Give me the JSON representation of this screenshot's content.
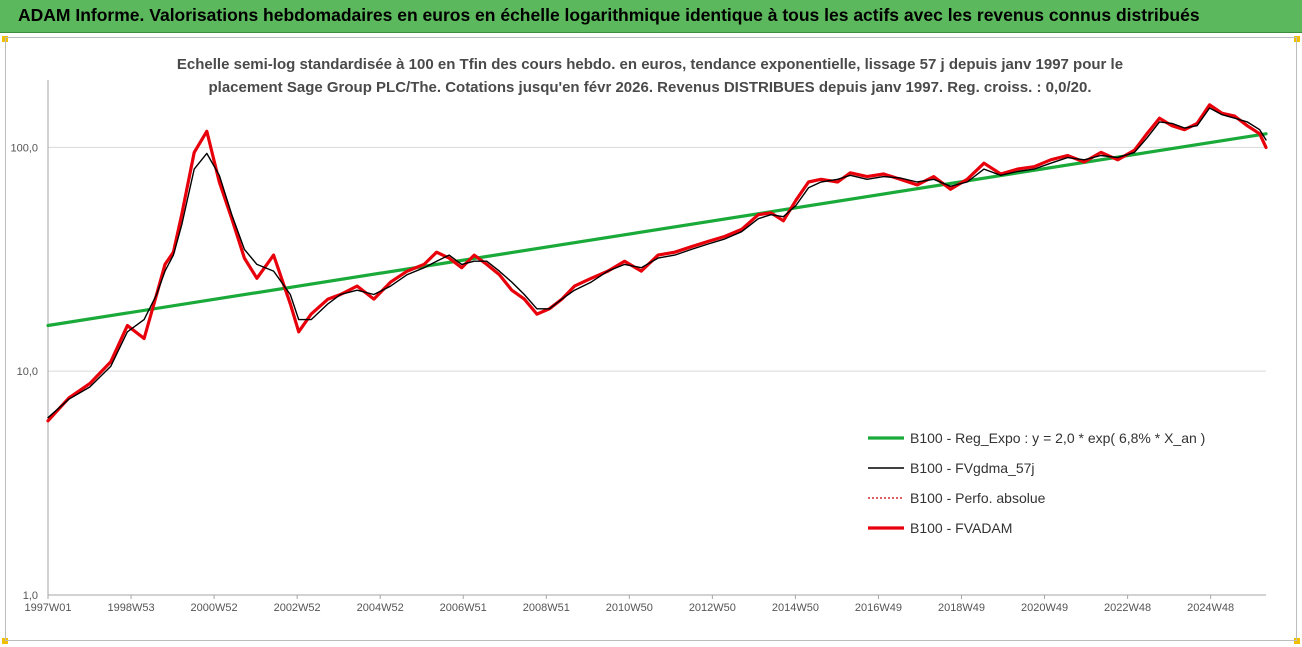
{
  "header": {
    "title": "ADAM Informe. Valorisations hebdomadaires en euros en échelle logarithmique identique à tous les actifs avec les revenus connus distribués"
  },
  "chart_data": {
    "type": "line",
    "subtitle_line1": "Echelle semi-log standardisée à 100 en Tfin des cours hebdo. en euros, tendance exponentielle, lissage 57 j depuis janv 1997 pour le",
    "subtitle_line2": "placement Sage Group PLC/The. Cotations jusqu'en févr 2026. Revenus DISTRIBUES depuis janv 1997. Reg. croiss. : 0,0/20.",
    "y_scale": "log",
    "ylim": [
      1,
      200
    ],
    "y_ticks": [
      {
        "value": 1,
        "label": "1,0"
      },
      {
        "value": 10,
        "label": "10,0"
      },
      {
        "value": 100,
        "label": "100,0"
      }
    ],
    "x_ticks": [
      "1997W01",
      "1998W53",
      "2000W52",
      "2002W52",
      "2004W52",
      "2006W51",
      "2008W51",
      "2010W50",
      "2012W50",
      "2014W50",
      "2016W49",
      "2018W49",
      "2020W49",
      "2022W48",
      "2024W48"
    ],
    "xlim": [
      1997.0,
      2026.15
    ],
    "grid": "horizontal",
    "legend_position": "bottom-right",
    "series": [
      {
        "name": "B100 - Reg_Expo : y = 2,0 * exp( 6,8% *  X_an )",
        "color": "#1aaa3a",
        "style": "solid-thick",
        "x": [
          1997.0,
          2026.15
        ],
        "values": [
          16.0,
          115.0
        ]
      },
      {
        "name": "B100 - FVgdma_57j",
        "color": "#000000",
        "style": "solid-thin",
        "x": [
          1997.0,
          1997.5,
          1998.0,
          1998.5,
          1998.9,
          1999.3,
          1999.6,
          1999.8,
          2000.0,
          2000.2,
          2000.5,
          2000.8,
          2001.1,
          2001.4,
          2001.7,
          2002.0,
          2002.4,
          2002.8,
          2003.0,
          2003.3,
          2003.7,
          2004.0,
          2004.4,
          2004.8,
          2005.2,
          2005.6,
          2006.0,
          2006.3,
          2006.6,
          2006.9,
          2007.2,
          2007.5,
          2007.8,
          2008.1,
          2008.4,
          2008.7,
          2009.0,
          2009.3,
          2009.6,
          2010.0,
          2010.4,
          2010.8,
          2011.2,
          2011.6,
          2012.0,
          2012.4,
          2012.8,
          2013.2,
          2013.6,
          2014.0,
          2014.3,
          2014.6,
          2014.9,
          2015.2,
          2015.5,
          2015.9,
          2016.2,
          2016.6,
          2017.0,
          2017.4,
          2017.8,
          2018.2,
          2018.6,
          2019.0,
          2019.4,
          2019.8,
          2020.2,
          2020.6,
          2021.0,
          2021.4,
          2021.8,
          2022.2,
          2022.6,
          2023.0,
          2023.3,
          2023.6,
          2023.9,
          2024.2,
          2024.5,
          2024.8,
          2025.1,
          2025.4,
          2025.7,
          2026.0,
          2026.15
        ],
        "values": [
          6.2,
          7.5,
          8.5,
          10.5,
          15,
          17,
          22,
          28,
          33,
          45,
          80,
          94,
          75,
          50,
          35,
          30,
          28,
          22,
          17,
          17,
          20,
          22,
          23,
          22,
          24,
          27,
          29,
          31,
          33,
          30,
          31,
          31,
          28,
          25,
          22,
          19,
          19,
          21,
          23,
          25,
          28,
          30,
          29,
          32,
          33,
          35,
          37,
          39,
          42,
          48,
          50,
          49,
          55,
          66,
          70,
          72,
          75,
          72,
          74,
          73,
          70,
          72,
          67,
          70,
          80,
          75,
          78,
          80,
          85,
          90,
          88,
          92,
          90,
          95,
          110,
          130,
          128,
          122,
          125,
          150,
          140,
          135,
          130,
          120,
          108
        ]
      },
      {
        "name": "B100 - Perfo. absolue",
        "color": "#cc0000",
        "style": "dotted",
        "x": [
          1997.0,
          1997.5,
          1998.0,
          1998.5,
          1998.9,
          1999.3,
          1999.6,
          1999.8,
          2000.0,
          2000.2,
          2000.5,
          2000.8,
          2001.1,
          2001.4,
          2001.7,
          2002.0,
          2002.4,
          2002.8,
          2003.0,
          2003.3,
          2003.7,
          2004.0,
          2004.4,
          2004.8,
          2005.2,
          2005.6,
          2006.0,
          2006.3,
          2006.6,
          2006.9,
          2007.2,
          2007.5,
          2007.8,
          2008.1,
          2008.4,
          2008.7,
          2009.0,
          2009.3,
          2009.6,
          2010.0,
          2010.4,
          2010.8,
          2011.2,
          2011.6,
          2012.0,
          2012.4,
          2012.8,
          2013.2,
          2013.6,
          2014.0,
          2014.3,
          2014.6,
          2014.9,
          2015.2,
          2015.5,
          2015.9,
          2016.2,
          2016.6,
          2017.0,
          2017.4,
          2017.8,
          2018.2,
          2018.6,
          2019.0,
          2019.4,
          2019.8,
          2020.2,
          2020.6,
          2021.0,
          2021.4,
          2021.8,
          2022.2,
          2022.6,
          2023.0,
          2023.3,
          2023.6,
          2023.9,
          2024.2,
          2024.5,
          2024.8,
          2025.1,
          2025.4,
          2025.7,
          2026.0,
          2026.15
        ],
        "values": [
          6.0,
          7.6,
          8.8,
          11,
          16,
          14,
          22,
          30,
          34,
          50,
          95,
          118,
          70,
          48,
          32,
          26,
          33,
          20,
          15,
          18,
          21,
          22,
          24,
          21,
          25,
          28,
          30,
          34,
          32,
          29,
          33,
          30,
          27,
          23,
          21,
          18,
          19,
          21,
          24,
          26,
          28,
          31,
          28,
          33,
          34,
          36,
          38,
          40,
          43,
          50,
          51,
          47,
          58,
          70,
          72,
          70,
          77,
          74,
          76,
          72,
          68,
          74,
          65,
          72,
          85,
          76,
          80,
          82,
          88,
          92,
          86,
          95,
          88,
          97,
          115,
          135,
          125,
          120,
          128,
          155,
          142,
          138,
          125,
          115,
          100
        ]
      },
      {
        "name": "B100 - FVADAM",
        "color": "#e8000b",
        "style": "solid-thick",
        "x": [
          1997.0,
          1997.5,
          1998.0,
          1998.5,
          1998.9,
          1999.3,
          1999.6,
          1999.8,
          2000.0,
          2000.2,
          2000.5,
          2000.8,
          2001.1,
          2001.4,
          2001.7,
          2002.0,
          2002.4,
          2002.8,
          2003.0,
          2003.3,
          2003.7,
          2004.0,
          2004.4,
          2004.8,
          2005.2,
          2005.6,
          2006.0,
          2006.3,
          2006.6,
          2006.9,
          2007.2,
          2007.5,
          2007.8,
          2008.1,
          2008.4,
          2008.7,
          2009.0,
          2009.3,
          2009.6,
          2010.0,
          2010.4,
          2010.8,
          2011.2,
          2011.6,
          2012.0,
          2012.4,
          2012.8,
          2013.2,
          2013.6,
          2014.0,
          2014.3,
          2014.6,
          2014.9,
          2015.2,
          2015.5,
          2015.9,
          2016.2,
          2016.6,
          2017.0,
          2017.4,
          2017.8,
          2018.2,
          2018.6,
          2019.0,
          2019.4,
          2019.8,
          2020.2,
          2020.6,
          2021.0,
          2021.4,
          2021.8,
          2022.2,
          2022.6,
          2023.0,
          2023.3,
          2023.6,
          2023.9,
          2024.2,
          2024.5,
          2024.8,
          2025.1,
          2025.4,
          2025.7,
          2026.0,
          2026.15
        ],
        "values": [
          6.0,
          7.6,
          8.8,
          11,
          16,
          14,
          22,
          30,
          34,
          50,
          95,
          118,
          70,
          48,
          32,
          26,
          33,
          20,
          15,
          18,
          21,
          22,
          24,
          21,
          25,
          28,
          30,
          34,
          32,
          29,
          33,
          30,
          27,
          23,
          21,
          18,
          19,
          21,
          24,
          26,
          28,
          31,
          28,
          33,
          34,
          36,
          38,
          40,
          43,
          50,
          51,
          47,
          58,
          70,
          72,
          70,
          77,
          74,
          76,
          72,
          68,
          74,
          65,
          72,
          85,
          76,
          80,
          82,
          88,
          92,
          86,
          95,
          88,
          97,
          115,
          135,
          125,
          120,
          128,
          155,
          142,
          138,
          125,
          115,
          100
        ]
      }
    ]
  }
}
